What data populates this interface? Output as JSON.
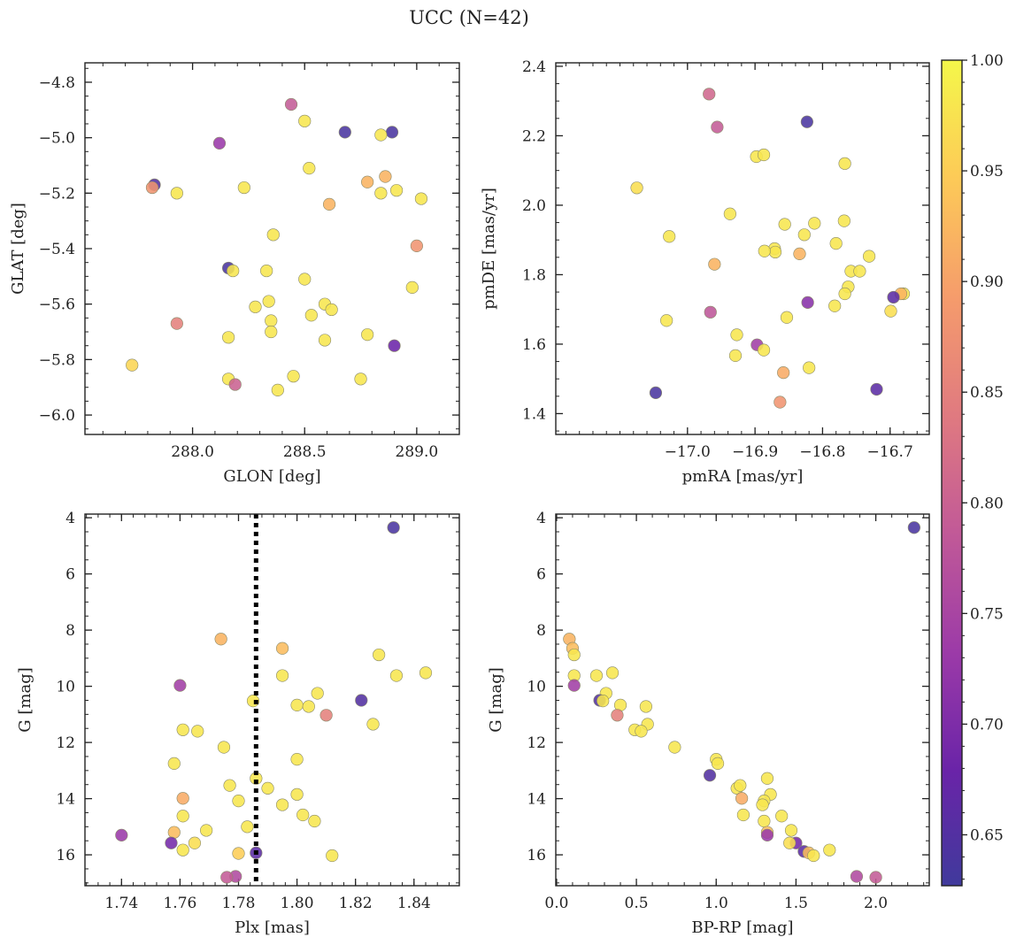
{
  "figure": {
    "title": "UCC (N=42)",
    "colorbar": {
      "range": [
        0.627,
        1.0
      ],
      "ticks": [
        "0.65",
        "0.70",
        "0.75",
        "0.80",
        "0.85",
        "0.90",
        "0.95",
        "1.00"
      ],
      "colormap": "plasma"
    }
  },
  "chart_data": [
    {
      "type": "scatter",
      "xlabel": "GLON [deg]",
      "ylabel": "GLAT [deg]",
      "xlim": [
        287.52,
        289.19
      ],
      "ylim": [
        -6.07,
        -4.73
      ],
      "y_inverted": false,
      "xticks": [
        {
          "v": 288.0,
          "label": "288.0"
        },
        {
          "v": 288.5,
          "label": "288.5"
        },
        {
          "v": 289.0,
          "label": "289.0"
        }
      ],
      "yticks": [
        {
          "v": -4.8,
          "label": "−4.8"
        },
        {
          "v": -5.0,
          "label": "−5.0"
        },
        {
          "v": -5.2,
          "label": "−5.2"
        },
        {
          "v": -5.4,
          "label": "−5.4"
        },
        {
          "v": -5.6,
          "label": "−5.6"
        },
        {
          "v": -5.8,
          "label": "−5.8"
        },
        {
          "v": -6.0,
          "label": "−6.0"
        }
      ],
      "points": [
        [
          288.44,
          -4.88,
          0.79
        ],
        [
          288.5,
          -4.94,
          0.98
        ],
        [
          288.68,
          -4.98,
          0.64
        ],
        [
          288.89,
          -4.98,
          0.64
        ],
        [
          288.84,
          -4.99,
          0.98
        ],
        [
          288.12,
          -5.02,
          0.73
        ],
        [
          288.52,
          -5.11,
          0.98
        ],
        [
          287.83,
          -5.17,
          0.65
        ],
        [
          287.82,
          -5.18,
          0.88
        ],
        [
          287.93,
          -5.2,
          0.98
        ],
        [
          288.23,
          -5.18,
          0.98
        ],
        [
          288.86,
          -5.14,
          0.92
        ],
        [
          288.78,
          -5.16,
          0.92
        ],
        [
          288.84,
          -5.2,
          0.98
        ],
        [
          288.91,
          -5.19,
          0.98
        ],
        [
          288.61,
          -5.24,
          0.92
        ],
        [
          288.36,
          -5.35,
          0.98
        ],
        [
          289.0,
          -5.39,
          0.88
        ],
        [
          288.16,
          -5.47,
          0.64
        ],
        [
          288.18,
          -5.48,
          0.98
        ],
        [
          288.33,
          -5.48,
          0.98
        ],
        [
          288.5,
          -5.51,
          0.98
        ],
        [
          288.34,
          -5.59,
          0.98
        ],
        [
          288.59,
          -5.6,
          0.98
        ],
        [
          288.28,
          -5.61,
          0.98
        ],
        [
          288.62,
          -5.62,
          0.98
        ],
        [
          288.98,
          -5.54,
          0.98
        ],
        [
          288.53,
          -5.64,
          0.98
        ],
        [
          288.35,
          -5.66,
          0.98
        ],
        [
          287.93,
          -5.67,
          0.85
        ],
        [
          288.35,
          -5.7,
          0.98
        ],
        [
          288.78,
          -5.71,
          0.98
        ],
        [
          288.16,
          -5.72,
          0.98
        ],
        [
          288.59,
          -5.73,
          0.98
        ],
        [
          288.9,
          -5.75,
          0.68
        ],
        [
          287.73,
          -5.82,
          0.96
        ],
        [
          288.45,
          -5.86,
          0.98
        ],
        [
          288.75,
          -5.87,
          0.98
        ],
        [
          288.16,
          -5.87,
          0.98
        ],
        [
          288.19,
          -5.89,
          0.8
        ],
        [
          288.38,
          -5.91,
          0.98
        ],
        [
          289.02,
          -5.22,
          0.98
        ]
      ]
    },
    {
      "type": "scatter",
      "xlabel": "pmRA [mas/yr]",
      "ylabel": "pmDE [mas/yr]",
      "xlim": [
        -17.195,
        -16.642
      ],
      "ylim": [
        1.34,
        2.41
      ],
      "y_inverted": false,
      "xticks": [
        {
          "v": -17.0,
          "label": "−17.0"
        },
        {
          "v": -16.9,
          "label": "−16.9"
        },
        {
          "v": -16.8,
          "label": "−16.8"
        },
        {
          "v": -16.7,
          "label": "−16.7"
        }
      ],
      "yticks": [
        {
          "v": 1.4,
          "label": "1.4"
        },
        {
          "v": 1.6,
          "label": "1.6"
        },
        {
          "v": 1.8,
          "label": "1.8"
        },
        {
          "v": 2.0,
          "label": "2.0"
        },
        {
          "v": 2.2,
          "label": "2.2"
        },
        {
          "v": 2.4,
          "label": "2.4"
        }
      ],
      "points": [
        [
          -16.968,
          2.32,
          0.81
        ],
        [
          -16.956,
          2.225,
          0.79
        ],
        [
          -16.823,
          2.24,
          0.64
        ],
        [
          -16.898,
          2.14,
          0.98
        ],
        [
          -16.887,
          2.145,
          0.98
        ],
        [
          -16.767,
          2.12,
          0.98
        ],
        [
          -17.075,
          2.05,
          0.97
        ],
        [
          -16.937,
          1.975,
          0.98
        ],
        [
          -16.768,
          1.955,
          0.98
        ],
        [
          -16.812,
          1.948,
          0.98
        ],
        [
          -16.856,
          1.945,
          0.98
        ],
        [
          -16.827,
          1.915,
          0.98
        ],
        [
          -17.027,
          1.91,
          0.98
        ],
        [
          -16.78,
          1.89,
          0.98
        ],
        [
          -16.871,
          1.875,
          0.98
        ],
        [
          -16.87,
          1.865,
          0.98
        ],
        [
          -16.886,
          1.868,
          0.98
        ],
        [
          -16.834,
          1.86,
          0.92
        ],
        [
          -16.731,
          1.853,
          0.98
        ],
        [
          -16.96,
          1.83,
          0.92
        ],
        [
          -16.758,
          1.81,
          0.98
        ],
        [
          -16.745,
          1.81,
          0.98
        ],
        [
          -16.762,
          1.765,
          0.98
        ],
        [
          -16.767,
          1.745,
          0.98
        ],
        [
          -16.68,
          1.745,
          0.98
        ],
        [
          -16.684,
          1.745,
          0.92
        ],
        [
          -16.695,
          1.735,
          0.66
        ],
        [
          -16.822,
          1.72,
          0.71
        ],
        [
          -16.782,
          1.71,
          0.98
        ],
        [
          -16.699,
          1.695,
          0.97
        ],
        [
          -16.966,
          1.692,
          0.78
        ],
        [
          -16.853,
          1.677,
          0.98
        ],
        [
          -17.031,
          1.668,
          0.98
        ],
        [
          -16.927,
          1.627,
          0.98
        ],
        [
          -16.897,
          1.598,
          0.74
        ],
        [
          -16.887,
          1.583,
          0.98
        ],
        [
          -16.929,
          1.567,
          0.98
        ],
        [
          -16.82,
          1.532,
          0.98
        ],
        [
          -16.858,
          1.518,
          0.91
        ],
        [
          -16.72,
          1.47,
          0.66
        ],
        [
          -17.047,
          1.46,
          0.64
        ],
        [
          -16.863,
          1.433,
          0.88
        ]
      ]
    },
    {
      "type": "scatter",
      "xlabel": "Plx [mas]",
      "ylabel": "G [mag]",
      "xlim": [
        1.7275,
        1.8555
      ],
      "ylim": [
        17.1,
        3.87
      ],
      "y_inverted": true,
      "vline": {
        "x": 1.786,
        "style": "dotted"
      },
      "xticks": [
        {
          "v": 1.74,
          "label": "1.74"
        },
        {
          "v": 1.76,
          "label": "1.76"
        },
        {
          "v": 1.78,
          "label": "1.78"
        },
        {
          "v": 1.8,
          "label": "1.80"
        },
        {
          "v": 1.82,
          "label": "1.82"
        },
        {
          "v": 1.84,
          "label": "1.84"
        }
      ],
      "yticks": [
        {
          "v": 4,
          "label": "4"
        },
        {
          "v": 6,
          "label": "6"
        },
        {
          "v": 8,
          "label": "8"
        },
        {
          "v": 10,
          "label": "10"
        },
        {
          "v": 12,
          "label": "12"
        },
        {
          "v": 14,
          "label": "14"
        },
        {
          "v": 16,
          "label": "16"
        }
      ],
      "points": [
        [
          1.833,
          4.35,
          0.64
        ],
        [
          1.774,
          8.32,
          0.92
        ],
        [
          1.795,
          8.65,
          0.93
        ],
        [
          1.828,
          8.88,
          0.98
        ],
        [
          1.834,
          9.62,
          0.98
        ],
        [
          1.844,
          9.52,
          0.98
        ],
        [
          1.795,
          9.62,
          0.98
        ],
        [
          1.76,
          9.97,
          0.74
        ],
        [
          1.807,
          10.25,
          0.98
        ],
        [
          1.822,
          10.5,
          0.65
        ],
        [
          1.785,
          10.52,
          0.98
        ],
        [
          1.8,
          10.67,
          0.98
        ],
        [
          1.804,
          10.72,
          0.98
        ],
        [
          1.81,
          11.03,
          0.85
        ],
        [
          1.826,
          11.35,
          0.98
        ],
        [
          1.761,
          11.55,
          0.98
        ],
        [
          1.766,
          11.6,
          0.98
        ],
        [
          1.775,
          12.17,
          0.98
        ],
        [
          1.8,
          12.6,
          0.98
        ],
        [
          1.758,
          12.75,
          0.98
        ],
        [
          1.777,
          13.53,
          0.98
        ],
        [
          1.786,
          13.28,
          0.98
        ],
        [
          1.79,
          13.63,
          0.98
        ],
        [
          1.8,
          13.85,
          0.98
        ],
        [
          1.78,
          14.08,
          0.98
        ],
        [
          1.761,
          13.99,
          0.91
        ],
        [
          1.795,
          14.22,
          0.98
        ],
        [
          1.802,
          14.58,
          0.98
        ],
        [
          1.761,
          14.62,
          0.98
        ],
        [
          1.806,
          14.8,
          0.98
        ],
        [
          1.769,
          15.13,
          0.98
        ],
        [
          1.758,
          15.2,
          0.93
        ],
        [
          1.74,
          15.3,
          0.73
        ],
        [
          1.765,
          15.58,
          0.97
        ],
        [
          1.757,
          15.58,
          0.69
        ],
        [
          1.761,
          15.83,
          0.98
        ],
        [
          1.78,
          15.95,
          0.95
        ],
        [
          1.786,
          15.93,
          0.66
        ],
        [
          1.812,
          16.03,
          0.98
        ],
        [
          1.779,
          16.77,
          0.76
        ],
        [
          1.776,
          16.8,
          0.79
        ],
        [
          1.783,
          15.0,
          0.98
        ]
      ]
    },
    {
      "type": "scatter",
      "xlabel": "BP-RP [mag]",
      "ylabel": "G [mag]",
      "xlim": [
        -0.005,
        2.335
      ],
      "ylim": [
        17.1,
        3.87
      ],
      "y_inverted": true,
      "xticks": [
        {
          "v": 0.0,
          "label": "0.0"
        },
        {
          "v": 0.5,
          "label": "0.5"
        },
        {
          "v": 1.0,
          "label": "1.0"
        },
        {
          "v": 1.5,
          "label": "1.5"
        },
        {
          "v": 2.0,
          "label": "2.0"
        }
      ],
      "yticks": [
        {
          "v": 4,
          "label": "4"
        },
        {
          "v": 6,
          "label": "6"
        },
        {
          "v": 8,
          "label": "8"
        },
        {
          "v": 10,
          "label": "10"
        },
        {
          "v": 12,
          "label": "12"
        },
        {
          "v": 14,
          "label": "14"
        },
        {
          "v": 16,
          "label": "16"
        }
      ],
      "points": [
        [
          2.24,
          4.35,
          0.64
        ],
        [
          0.08,
          8.32,
          0.92
        ],
        [
          0.1,
          8.65,
          0.93
        ],
        [
          0.11,
          8.88,
          0.98
        ],
        [
          0.11,
          9.62,
          0.98
        ],
        [
          0.25,
          9.62,
          0.98
        ],
        [
          0.35,
          9.52,
          0.98
        ],
        [
          0.11,
          9.97,
          0.74
        ],
        [
          0.31,
          10.25,
          0.98
        ],
        [
          0.27,
          10.5,
          0.65
        ],
        [
          0.29,
          10.52,
          0.98
        ],
        [
          0.4,
          10.67,
          0.98
        ],
        [
          0.56,
          10.72,
          0.98
        ],
        [
          0.38,
          11.03,
          0.85
        ],
        [
          0.57,
          11.35,
          0.98
        ],
        [
          0.49,
          11.55,
          0.98
        ],
        [
          0.53,
          11.6,
          0.98
        ],
        [
          0.74,
          12.17,
          0.98
        ],
        [
          1.0,
          12.6,
          0.98
        ],
        [
          1.01,
          12.75,
          0.98
        ],
        [
          0.96,
          13.17,
          0.65
        ],
        [
          1.32,
          13.28,
          0.98
        ],
        [
          1.13,
          13.63,
          0.98
        ],
        [
          1.15,
          13.53,
          0.98
        ],
        [
          1.34,
          13.85,
          0.98
        ],
        [
          1.16,
          13.99,
          0.91
        ],
        [
          1.3,
          14.08,
          0.98
        ],
        [
          1.29,
          14.22,
          0.98
        ],
        [
          1.17,
          14.58,
          0.98
        ],
        [
          1.41,
          14.62,
          0.98
        ],
        [
          1.3,
          14.8,
          0.98
        ],
        [
          1.47,
          15.13,
          0.98
        ],
        [
          1.32,
          15.2,
          0.93
        ],
        [
          1.32,
          15.3,
          0.73
        ],
        [
          1.5,
          15.58,
          0.69
        ],
        [
          1.46,
          15.58,
          0.97
        ],
        [
          1.55,
          15.88,
          0.66
        ],
        [
          1.58,
          15.93,
          0.93
        ],
        [
          1.61,
          16.03,
          0.98
        ],
        [
          1.71,
          15.83,
          0.98
        ],
        [
          1.88,
          16.77,
          0.76
        ],
        [
          2.0,
          16.8,
          0.79
        ]
      ]
    }
  ]
}
